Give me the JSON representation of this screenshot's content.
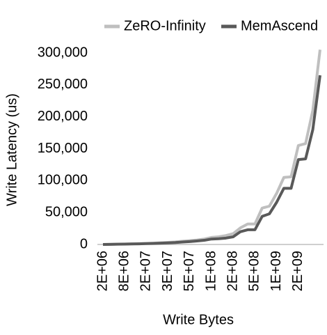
{
  "chart_data": {
    "type": "line",
    "x_label": "Write Bytes",
    "y_label": "Write Latency (us)",
    "categories": [
      "2E+06",
      null,
      null,
      "8E+06",
      null,
      null,
      "2E+07",
      null,
      null,
      "3E+07",
      null,
      null,
      "5E+07",
      null,
      null,
      "1E+08",
      null,
      null,
      "2E+08",
      null,
      null,
      "5E+08",
      null,
      null,
      "1E+09",
      null,
      null,
      "2E+09",
      null,
      null,
      null
    ],
    "series": [
      {
        "name": "ZeRO-Infinity",
        "color": "#bfbfbf",
        "values": [
          0,
          300,
          500,
          700,
          1000,
          1300,
          1700,
          2100,
          2700,
          3300,
          4000,
          5000,
          6000,
          7000,
          8500,
          11000,
          12000,
          14000,
          17000,
          26000,
          32000,
          32000,
          57000,
          60000,
          80000,
          105000,
          106000,
          155000,
          158000,
          210000,
          305000
        ]
      },
      {
        "name": "MemAscend",
        "color": "#595959",
        "values": [
          0,
          200,
          400,
          600,
          800,
          1000,
          1300,
          1600,
          2000,
          2500,
          3000,
          3800,
          4500,
          5500,
          6500,
          8500,
          9000,
          10000,
          12000,
          20000,
          23000,
          23000,
          44000,
          48000,
          66000,
          88000,
          88000,
          133000,
          134000,
          180000,
          265000
        ]
      }
    ],
    "ylim": [
      0,
      320000
    ],
    "yticks": [
      0,
      {
        "value": 50000,
        "label": "50,000"
      },
      {
        "value": 100000,
        "label": "100,000"
      },
      {
        "value": 150000,
        "label": "150,000"
      },
      {
        "value": 200000,
        "label": "200,000"
      },
      {
        "value": 250000,
        "label": "250,000"
      },
      {
        "value": 300000,
        "label": "300,000"
      }
    ],
    "legend": "top",
    "grid": false
  }
}
